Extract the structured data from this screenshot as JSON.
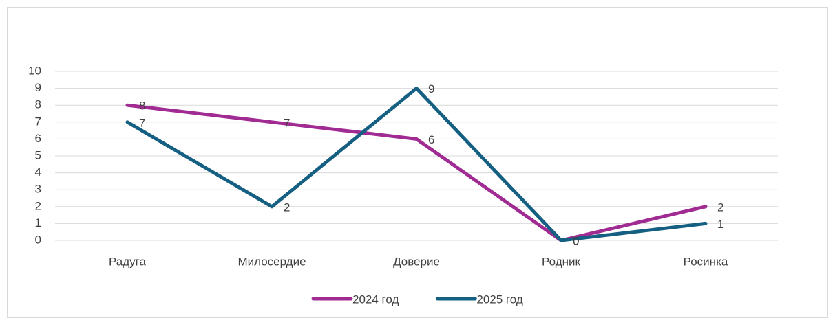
{
  "chart_data": {
    "type": "line",
    "categories": [
      "Радуга",
      "Милосердие",
      "Доверие",
      "Родник",
      "Росинка"
    ],
    "series": [
      {
        "name": "2024 год",
        "color": "#a02b93",
        "values": [
          8,
          7,
          6,
          0,
          2
        ]
      },
      {
        "name": "2025 год",
        "color": "#156082",
        "values": [
          7,
          2,
          9,
          0,
          1
        ]
      }
    ],
    "ylim": [
      0,
      10
    ],
    "yticks": [
      0,
      1,
      2,
      3,
      4,
      5,
      6,
      7,
      8,
      9,
      10
    ],
    "grid": true,
    "legend": "bottom"
  }
}
